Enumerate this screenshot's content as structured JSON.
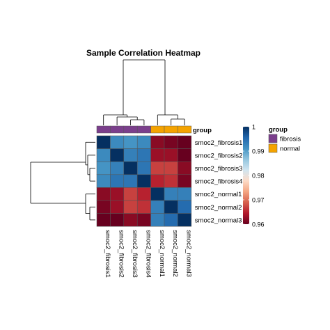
{
  "chart_data": {
    "type": "heatmap",
    "title": "Sample Correlation Heatmap",
    "rows": [
      "smoc2_fibrosis1",
      "smoc2_fibrosis2",
      "smoc2_fibrosis3",
      "smoc2_fibrosis4",
      "smoc2_normal1",
      "smoc2_normal2",
      "smoc2_normal3"
    ],
    "columns": [
      "smoc2_fibrosis1",
      "smoc2_fibrosis2",
      "smoc2_fibrosis3",
      "smoc2_fibrosis4",
      "smoc2_normal1",
      "smoc2_normal2",
      "smoc2_normal3"
    ],
    "values": [
      [
        1.0,
        0.992,
        0.991,
        0.992,
        0.962,
        0.961,
        0.958
      ],
      [
        0.992,
        1.0,
        0.993,
        0.994,
        0.963,
        0.963,
        0.96
      ],
      [
        0.991,
        0.993,
        1.0,
        0.994,
        0.967,
        0.967,
        0.962
      ],
      [
        0.992,
        0.994,
        0.994,
        1.0,
        0.965,
        0.966,
        0.961
      ],
      [
        0.962,
        0.963,
        0.967,
        0.965,
        1.0,
        0.993,
        0.993
      ],
      [
        0.961,
        0.963,
        0.967,
        0.966,
        0.993,
        1.0,
        0.995
      ],
      [
        0.958,
        0.96,
        0.962,
        0.961,
        0.993,
        0.995,
        1.0
      ]
    ],
    "annotation": {
      "label": "group",
      "column_groups": [
        "fibrosis",
        "fibrosis",
        "fibrosis",
        "fibrosis",
        "normal",
        "normal",
        "normal"
      ]
    },
    "colorbar": {
      "range": [
        0.96,
        1.0
      ],
      "ticks": [
        {
          "value": 0.96,
          "label": "0.96"
        },
        {
          "value": 0.97,
          "label": "0.97"
        },
        {
          "value": 0.98,
          "label": "0.98"
        },
        {
          "value": 0.99,
          "label": "0.99"
        },
        {
          "value": 1.0,
          "label": "1"
        }
      ],
      "colors": [
        "#67001f",
        "#b2182b",
        "#d6604d",
        "#f4a582",
        "#fddbc7",
        "#d1e5f0",
        "#92c5de",
        "#4393c3",
        "#2166ac",
        "#053061"
      ]
    },
    "legend": {
      "title": "group",
      "entries": [
        {
          "label": "fibrosis",
          "color": "#7b3f8c"
        },
        {
          "label": "normal",
          "color": "#f4a300"
        }
      ],
      "placement": "right"
    }
  }
}
